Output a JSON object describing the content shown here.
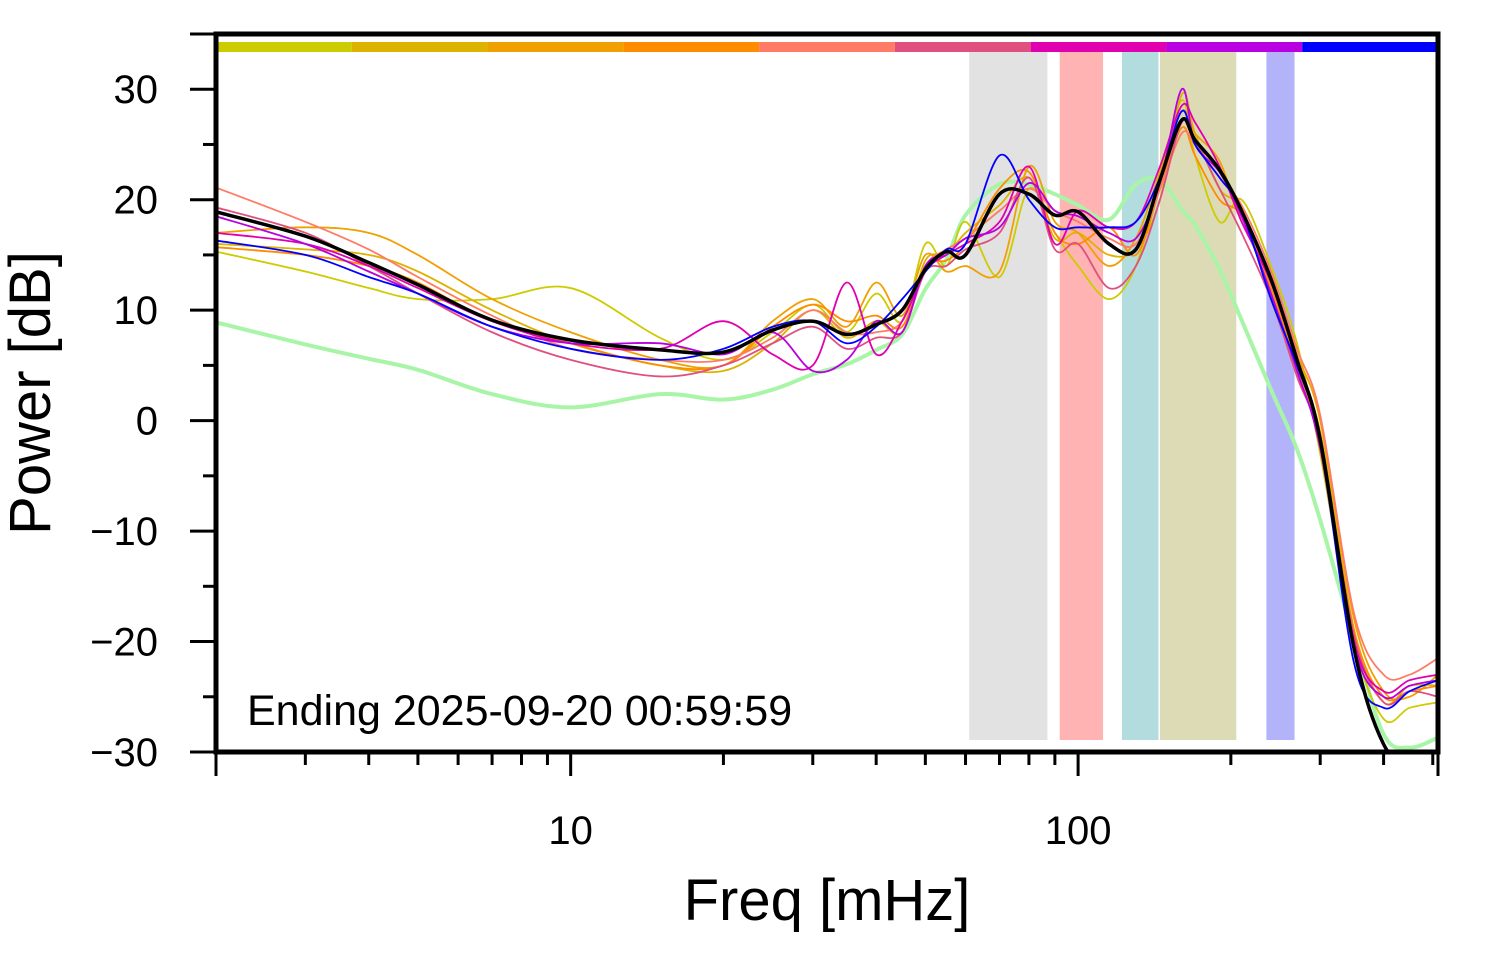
{
  "chart_data": {
    "type": "line",
    "title": "",
    "xlabel": "Freq [mHz]",
    "ylabel": "Power [dB]",
    "x_scale": "log",
    "xlim": [
      2,
      512
    ],
    "ylim": [
      -30,
      35
    ],
    "x_tick_labels": [
      "10",
      "100"
    ],
    "x_major_ticks": [
      10,
      100
    ],
    "x_minor_ticks": [
      2,
      3,
      4,
      5,
      6,
      7,
      8,
      9,
      20,
      30,
      40,
      50,
      60,
      70,
      80,
      90,
      200,
      300,
      400,
      500
    ],
    "y_tick_labels": [
      "30",
      "20",
      "10",
      "0",
      "−10",
      "−20",
      "−30"
    ],
    "y_major_ticks": [
      30,
      20,
      10,
      0,
      -10,
      -20,
      -30
    ],
    "y_minor_ticks": [
      25,
      15,
      5,
      -5,
      -15,
      -25
    ],
    "grid": false,
    "annotation": "Ending 2025-09-20 00:59:59",
    "bands": [
      {
        "from": 61,
        "to": 87,
        "color": "#e2e2e2"
      },
      {
        "from": 92,
        "to": 112,
        "color": "#ffb3b3"
      },
      {
        "from": 122,
        "to": 144,
        "color": "#b3dcdf"
      },
      {
        "from": 145,
        "to": 205,
        "color": "#dcdbb6"
      },
      {
        "from": 235,
        "to": 267,
        "color": "#b3b3fa"
      }
    ],
    "color_bar": [
      "#cccc00",
      "#ddb300",
      "#f0a000",
      "#ff8c00",
      "#ff7b66",
      "#e0507f",
      "#e000b0",
      "#b800e0",
      "#0000ff"
    ],
    "x": [
      2,
      3,
      4,
      5,
      7,
      10,
      15,
      20,
      25,
      30,
      35,
      40,
      45,
      50,
      55,
      60,
      70,
      80,
      90,
      100,
      115,
      130,
      145,
      160,
      170,
      190,
      210,
      240,
      270,
      300,
      350,
      400,
      450,
      512
    ],
    "series": [
      {
        "color": "#a8f5a8",
        "width": 4,
        "values": [
          8.9,
          6.9,
          5.6,
          4.6,
          2.4,
          1.2,
          2.4,
          1.9,
          2.8,
          4.2,
          5.1,
          6.4,
          7.8,
          11.9,
          14.6,
          18.6,
          21.4,
          21.4,
          20.5,
          19.5,
          18.2,
          21.4,
          21.8,
          19.1,
          17.7,
          13.7,
          9.1,
          2.8,
          -2.6,
          -9.0,
          -19.8,
          -28.4,
          -29.6,
          -28.7
        ]
      },
      {
        "color": "#cccc00",
        "width": 1.8,
        "values": [
          15.3,
          13.5,
          12.0,
          11.0,
          11.0,
          12.0,
          7.5,
          5.5,
          8.0,
          10.5,
          8.0,
          11.5,
          9.0,
          16.0,
          14.0,
          18.0,
          13.0,
          21.0,
          17.0,
          14.0,
          11.0,
          14.0,
          22.0,
          29.0,
          24.0,
          18.0,
          20.0,
          14.0,
          7.0,
          -3.0,
          -20.0,
          -27.0,
          -26.0,
          -25.5
        ]
      },
      {
        "color": "#ddb300",
        "width": 1.8,
        "values": [
          16.0,
          15.5,
          15.0,
          13.5,
          10.0,
          7.0,
          5.0,
          4.5,
          7.0,
          10.0,
          7.5,
          9.0,
          8.0,
          14.5,
          15.0,
          17.0,
          19.5,
          22.0,
          16.5,
          17.0,
          15.0,
          15.5,
          20.0,
          29.5,
          26.0,
          21.0,
          19.0,
          11.0,
          4.5,
          -1.0,
          -19.0,
          -25.5,
          -24.0,
          -24.0
        ]
      },
      {
        "color": "#f0a000",
        "width": 1.8,
        "values": [
          17.0,
          17.5,
          17.0,
          15.0,
          11.0,
          8.0,
          5.5,
          5.0,
          9.0,
          11.0,
          8.5,
          12.5,
          9.5,
          15.0,
          13.5,
          14.0,
          13.5,
          23.0,
          18.0,
          17.0,
          14.0,
          16.5,
          22.5,
          28.0,
          26.0,
          23.5,
          18.0,
          13.0,
          6.0,
          0.0,
          -18.0,
          -24.5,
          -25.0,
          -23.0
        ]
      },
      {
        "color": "#ff8c00",
        "width": 1.8,
        "values": [
          15.7,
          15.0,
          14.0,
          12.5,
          9.0,
          7.0,
          5.0,
          5.0,
          8.5,
          10.5,
          9.0,
          9.5,
          8.5,
          14.0,
          14.5,
          16.0,
          21.0,
          22.5,
          17.0,
          16.0,
          17.5,
          15.0,
          21.0,
          26.5,
          24.0,
          20.0,
          18.5,
          12.0,
          5.0,
          -2.0,
          -19.0,
          -25.0,
          -24.5,
          -24.0
        ]
      },
      {
        "color": "#ff7b66",
        "width": 1.8,
        "values": [
          21.1,
          18.0,
          15.5,
          13.0,
          9.5,
          6.5,
          5.5,
          5.5,
          7.5,
          10.0,
          8.0,
          8.0,
          9.0,
          14.0,
          15.5,
          16.5,
          19.0,
          21.0,
          19.0,
          18.0,
          16.5,
          16.0,
          21.0,
          26.0,
          25.0,
          22.0,
          19.5,
          13.5,
          6.5,
          0.5,
          -17.5,
          -23.0,
          -23.0,
          -21.5
        ]
      },
      {
        "color": "#e0507f",
        "width": 1.8,
        "values": [
          19.3,
          17.0,
          14.0,
          11.5,
          8.0,
          5.5,
          4.0,
          5.0,
          7.0,
          8.5,
          6.5,
          7.5,
          8.0,
          13.5,
          14.0,
          15.5,
          17.0,
          22.0,
          15.5,
          16.0,
          12.0,
          14.0,
          20.0,
          27.0,
          25.5,
          21.0,
          17.0,
          11.0,
          4.0,
          -2.0,
          -19.5,
          -25.5,
          -24.5,
          -25.0
        ]
      },
      {
        "color": "#e000b0",
        "width": 1.8,
        "values": [
          17.0,
          16.0,
          14.0,
          12.0,
          9.0,
          7.0,
          6.5,
          9.0,
          6.0,
          5.0,
          12.5,
          6.0,
          9.0,
          13.5,
          15.0,
          16.0,
          18.0,
          23.0,
          16.0,
          19.0,
          17.5,
          18.0,
          23.0,
          28.5,
          27.0,
          23.0,
          18.0,
          12.5,
          5.5,
          -1.5,
          -20.0,
          -24.5,
          -23.5,
          -23.0
        ]
      },
      {
        "color": "#b800e0",
        "width": 1.8,
        "values": [
          18.5,
          16.0,
          13.5,
          11.5,
          8.5,
          7.0,
          7.0,
          6.0,
          8.0,
          4.5,
          5.5,
          9.0,
          8.0,
          14.0,
          15.0,
          16.5,
          17.5,
          21.5,
          19.0,
          18.5,
          17.0,
          16.5,
          21.5,
          30.0,
          25.0,
          22.5,
          18.5,
          11.5,
          4.5,
          -2.5,
          -20.5,
          -25.0,
          -24.0,
          -23.5
        ]
      },
      {
        "color": "#0000ff",
        "width": 1.8,
        "values": [
          16.3,
          15.0,
          13.0,
          11.5,
          8.5,
          6.5,
          5.5,
          6.5,
          8.5,
          9.0,
          7.0,
          8.5,
          11.0,
          13.5,
          15.5,
          16.0,
          24.0,
          20.0,
          17.5,
          17.5,
          17.5,
          18.0,
          22.0,
          28.0,
          25.0,
          22.0,
          19.0,
          11.0,
          5.0,
          -2.0,
          -22.0,
          -26.0,
          -24.5,
          -23.5
        ]
      },
      {
        "color": "#000000",
        "width": 3.5,
        "values": [
          18.9,
          16.7,
          14.3,
          12.3,
          9.1,
          7.3,
          6.4,
          6.2,
          8.2,
          9.0,
          7.8,
          8.7,
          10.0,
          13.7,
          15.3,
          15.0,
          20.5,
          20.5,
          18.6,
          18.9,
          16.0,
          15.5,
          21.8,
          27.2,
          25.4,
          22.7,
          19.0,
          12.8,
          5.5,
          -1.7,
          -20.7,
          -29.3,
          -31,
          -31
        ]
      }
    ]
  }
}
